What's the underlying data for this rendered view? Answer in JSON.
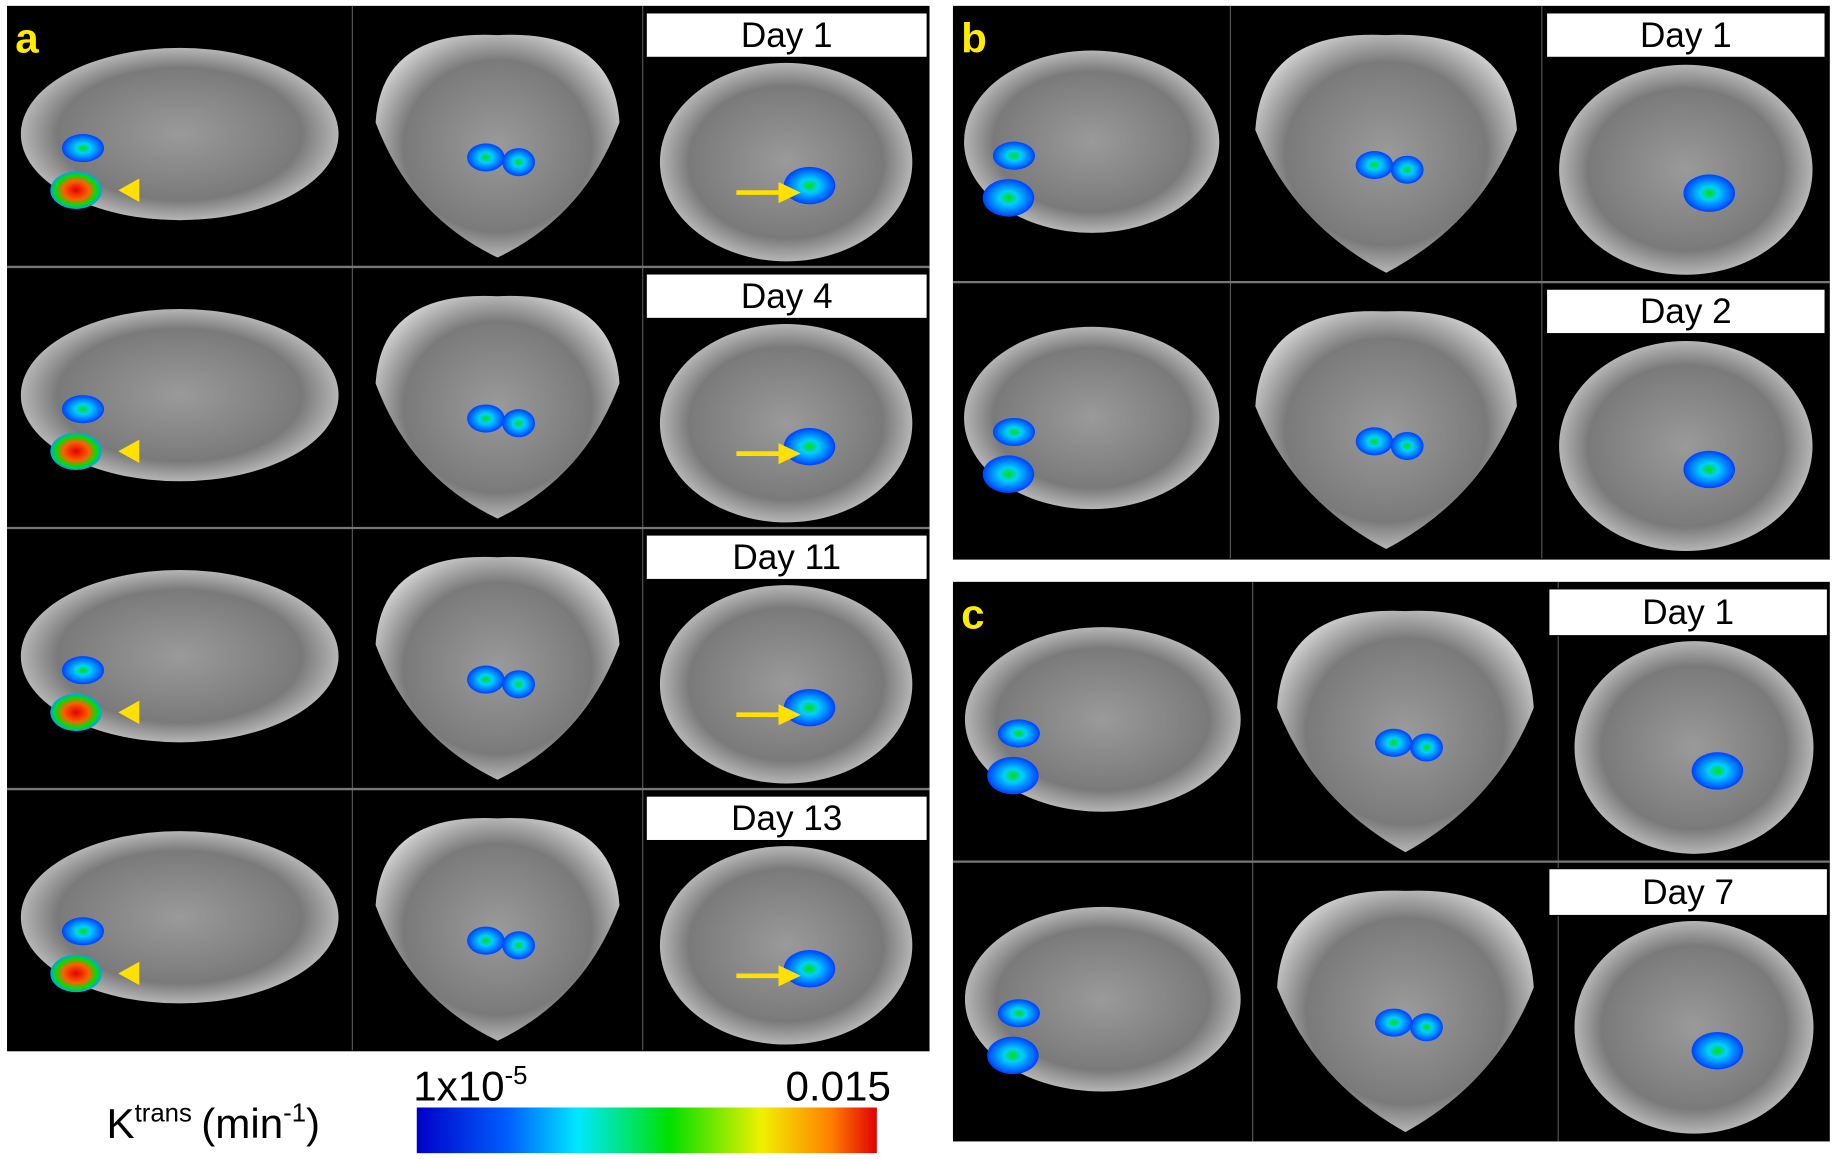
{
  "panels": [
    {
      "label": "a",
      "days": [
        "Day 1",
        "Day 4",
        "Day 11",
        "Day 13"
      ]
    },
    {
      "label": "b",
      "days": [
        "Day 1",
        "Day 2"
      ]
    },
    {
      "label": "c",
      "days": [
        "Day 1",
        "Day 7"
      ]
    }
  ],
  "colorbar": {
    "quantity": "K",
    "quantity_sup": "trans",
    "unit_open": "(min",
    "unit_sup": "-1",
    "unit_close": ")",
    "min_base": "1x10",
    "min_sup": "-5",
    "max": "0.015"
  }
}
